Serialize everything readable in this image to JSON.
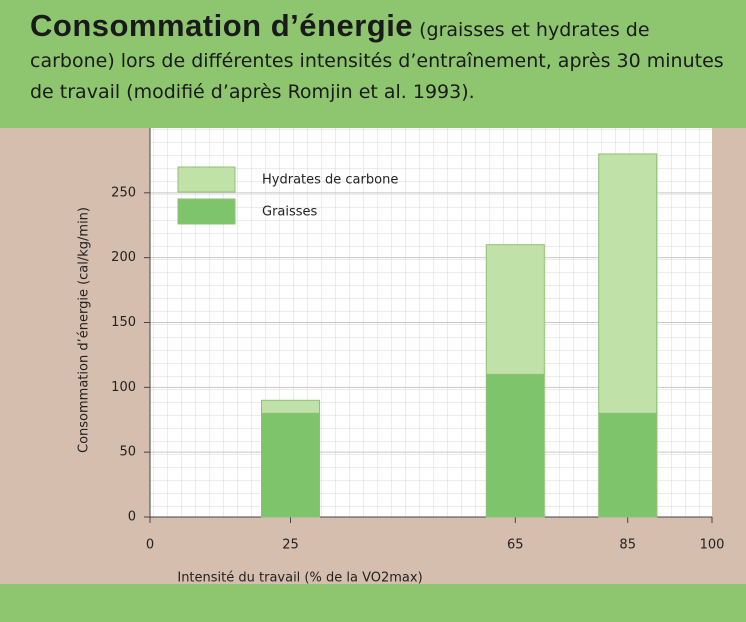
{
  "chart_data": {
    "type": "stacked-bar",
    "title": "Consommation d’énergie",
    "subtitle": "(graisses et hydrates de carbone) lors de différentes intensités d’entraînement, après 30 minutes de travail (modifié d’après Romjin et al. 1993).",
    "x_label": "Intensité du travail (% de la VO2max)",
    "y_label": "Consommation d’énergie (cal/kg/min)",
    "x": [
      25,
      65,
      85
    ],
    "series": [
      {
        "name": "Graisses",
        "color": "#7dc46a",
        "values": [
          80,
          110,
          80
        ]
      },
      {
        "name": "Hydrates de carbone",
        "color": "#c0e2a8",
        "values": [
          10,
          100,
          200
        ]
      }
    ],
    "xlim": [
      0,
      100
    ],
    "xticks": [
      0,
      25,
      65,
      85,
      100
    ],
    "ylim": [
      0,
      300
    ],
    "yticks": [
      0,
      50,
      100,
      150,
      200,
      250
    ],
    "grid": true,
    "legend": "top-left"
  }
}
